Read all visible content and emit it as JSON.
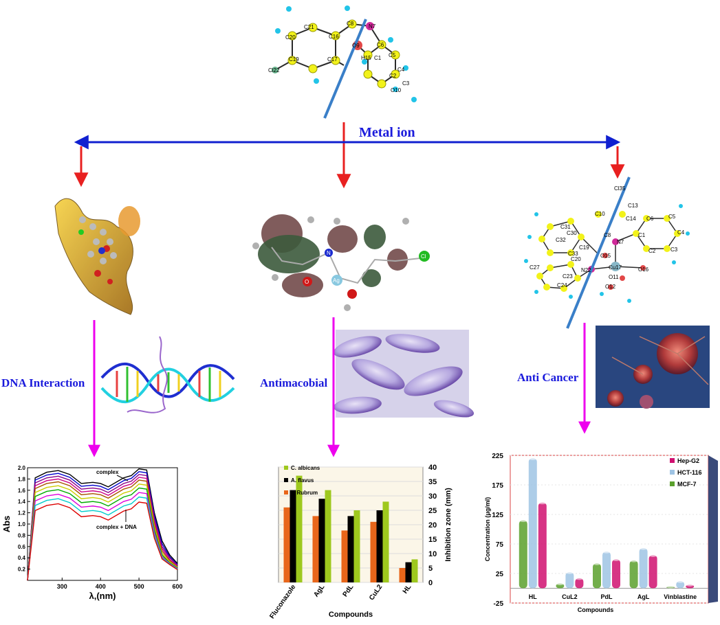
{
  "header": {
    "metal_ion_label": "Metal ion"
  },
  "ligand_atoms": [
    "C8",
    "N7",
    "C21",
    "C16",
    "C20",
    "C19",
    "C17",
    "C122",
    "O9",
    "C6",
    "C5",
    "C1",
    "C4",
    "C2",
    "C3",
    "O10",
    "H15",
    "H24",
    "H11"
  ],
  "complex_atoms": [
    "Cl35",
    "C10",
    "C13",
    "C14",
    "C6",
    "C5",
    "C4",
    "C3",
    "C2",
    "C1",
    "C31",
    "C30",
    "C32",
    "C33",
    "C19",
    "C20",
    "C9",
    "C8",
    "N7",
    "Cu17",
    "C27",
    "C25",
    "C24",
    "C23",
    "N22",
    "O15",
    "O16",
    "O11",
    "O12"
  ],
  "branches": {
    "dna": {
      "label": "DNA Interaction"
    },
    "antimicrobial": {
      "label": "Antimacobial"
    },
    "anticancer": {
      "label": "Anti Cancer"
    }
  },
  "orbital_atoms": [
    "Ag",
    "Cl",
    "N",
    "O"
  ],
  "colors": {
    "arrow_red": "#e82020",
    "arrow_blue": "#1020d0",
    "arrow_magenta": "#ee00ee",
    "label_blue": "#1a1adc"
  },
  "chart_data": [
    {
      "type": "line",
      "xlabel": "λ,(nm)",
      "ylabel": "Abs",
      "xlim": [
        210,
        600
      ],
      "ylim": [
        0.0,
        2.0
      ],
      "xticks": [
        300,
        400,
        500,
        600
      ],
      "yticks": [
        0.2,
        0.4,
        0.6,
        0.8,
        1.0,
        1.2,
        1.4,
        1.6,
        1.8,
        2.0
      ],
      "annotations": [
        "complex",
        "complex + DNA"
      ],
      "series": [
        {
          "color": "#000000",
          "x": [
            210,
            230,
            260,
            290,
            320,
            350,
            380,
            400,
            420,
            460,
            480,
            500,
            520,
            540,
            560,
            580,
            600
          ],
          "y": [
            0.0,
            1.82,
            1.92,
            1.95,
            1.88,
            1.72,
            1.74,
            1.72,
            1.66,
            1.82,
            1.86,
            1.98,
            1.96,
            1.2,
            0.7,
            0.45,
            0.3
          ]
        },
        {
          "color": "#0000cc",
          "x": [
            210,
            230,
            260,
            290,
            320,
            350,
            380,
            400,
            420,
            460,
            480,
            500,
            520,
            540,
            560,
            580,
            600
          ],
          "y": [
            0.0,
            1.78,
            1.87,
            1.9,
            1.83,
            1.67,
            1.69,
            1.67,
            1.61,
            1.77,
            1.81,
            1.93,
            1.91,
            1.15,
            0.65,
            0.42,
            0.28
          ]
        },
        {
          "color": "#880088",
          "x": [
            210,
            230,
            260,
            290,
            320,
            350,
            380,
            400,
            420,
            460,
            480,
            500,
            520,
            540,
            560,
            580,
            600
          ],
          "y": [
            0.0,
            1.73,
            1.82,
            1.85,
            1.78,
            1.62,
            1.64,
            1.62,
            1.56,
            1.72,
            1.76,
            1.88,
            1.86,
            1.1,
            0.6,
            0.4,
            0.27
          ]
        },
        {
          "color": "#cc0088",
          "x": [
            210,
            230,
            260,
            290,
            320,
            350,
            380,
            400,
            420,
            460,
            480,
            500,
            520,
            540,
            560,
            580,
            600
          ],
          "y": [
            0.0,
            1.68,
            1.77,
            1.8,
            1.73,
            1.57,
            1.59,
            1.57,
            1.51,
            1.67,
            1.71,
            1.83,
            1.81,
            1.05,
            0.56,
            0.37,
            0.25
          ]
        },
        {
          "color": "#aa5500",
          "x": [
            210,
            230,
            260,
            290,
            320,
            350,
            380,
            400,
            420,
            460,
            480,
            500,
            520,
            540,
            560,
            580,
            600
          ],
          "y": [
            0.0,
            1.63,
            1.72,
            1.75,
            1.68,
            1.52,
            1.54,
            1.52,
            1.46,
            1.62,
            1.66,
            1.78,
            1.76,
            1.0,
            0.52,
            0.35,
            0.24
          ]
        },
        {
          "color": "#cccc00",
          "x": [
            210,
            230,
            260,
            290,
            320,
            350,
            380,
            400,
            420,
            460,
            480,
            500,
            520,
            540,
            560,
            580,
            600
          ],
          "y": [
            0.0,
            1.56,
            1.65,
            1.68,
            1.61,
            1.45,
            1.47,
            1.45,
            1.39,
            1.55,
            1.59,
            1.71,
            1.69,
            0.95,
            0.48,
            0.33,
            0.23
          ]
        },
        {
          "color": "#00aa00",
          "x": [
            210,
            230,
            260,
            290,
            320,
            350,
            380,
            400,
            420,
            460,
            480,
            500,
            520,
            540,
            560,
            580,
            600
          ],
          "y": [
            0.0,
            1.49,
            1.58,
            1.61,
            1.54,
            1.38,
            1.4,
            1.38,
            1.32,
            1.48,
            1.52,
            1.64,
            1.62,
            0.9,
            0.45,
            0.31,
            0.22
          ]
        },
        {
          "color": "#dd00dd",
          "x": [
            210,
            230,
            260,
            290,
            320,
            350,
            380,
            400,
            420,
            460,
            480,
            500,
            520,
            540,
            560,
            580,
            600
          ],
          "y": [
            0.0,
            1.41,
            1.5,
            1.53,
            1.46,
            1.3,
            1.32,
            1.3,
            1.24,
            1.4,
            1.44,
            1.56,
            1.54,
            0.85,
            0.42,
            0.3,
            0.21
          ]
        },
        {
          "color": "#00cccc",
          "x": [
            210,
            230,
            260,
            290,
            320,
            350,
            380,
            400,
            420,
            460,
            480,
            500,
            520,
            540,
            560,
            580,
            600
          ],
          "y": [
            0.0,
            1.33,
            1.42,
            1.45,
            1.38,
            1.22,
            1.24,
            1.22,
            1.16,
            1.32,
            1.36,
            1.48,
            1.46,
            0.8,
            0.4,
            0.29,
            0.2
          ]
        },
        {
          "color": "#dd0000",
          "x": [
            210,
            230,
            260,
            290,
            320,
            350,
            380,
            400,
            420,
            460,
            480,
            500,
            520,
            540,
            560,
            580,
            600
          ],
          "y": [
            0.0,
            1.24,
            1.33,
            1.36,
            1.29,
            1.13,
            1.15,
            1.13,
            1.07,
            1.23,
            1.27,
            1.39,
            1.37,
            0.75,
            0.38,
            0.28,
            0.19
          ]
        }
      ]
    },
    {
      "type": "bar",
      "categories": [
        "Fluconazole",
        "AgL",
        "PdL",
        "CuL2",
        "HL"
      ],
      "xlabel": "Compounds",
      "ylabel": "Inhibition zone (mm)",
      "ylim": [
        0,
        40
      ],
      "yticks": [
        0,
        5,
        10,
        15,
        20,
        25,
        30,
        35,
        40
      ],
      "legend_position": "top-left",
      "series": [
        {
          "name": "T. Rubrum",
          "color": "#e8661a",
          "values": [
            26,
            23,
            18,
            21,
            5
          ]
        },
        {
          "name": "A. flavus",
          "color": "#000000",
          "values": [
            32,
            29,
            23,
            25,
            7
          ]
        },
        {
          "name": "C. albicans",
          "color": "#9ec81e",
          "values": [
            37,
            32,
            25,
            28,
            8
          ]
        }
      ]
    },
    {
      "type": "bar",
      "categories": [
        "HL",
        "CuL2",
        "PdL",
        "AgL",
        "Vinblastine"
      ],
      "xlabel": "Compounds",
      "ylabel": "Concentration (μg/ml)",
      "ylim": [
        -25,
        225
      ],
      "yticks": [
        -25,
        25,
        75,
        125,
        175,
        225
      ],
      "legend_position": "top-right",
      "series": [
        {
          "name": "MCF-7",
          "color": "#5aa02c",
          "values": [
            115,
            8,
            42,
            47,
            3
          ]
        },
        {
          "name": "HCT-116",
          "color": "#9fc4e4",
          "values": [
            220,
            27,
            62,
            68,
            12
          ]
        },
        {
          "name": "Hep-G2",
          "color": "#d01070",
          "values": [
            145,
            17,
            49,
            56,
            6
          ]
        }
      ]
    }
  ]
}
